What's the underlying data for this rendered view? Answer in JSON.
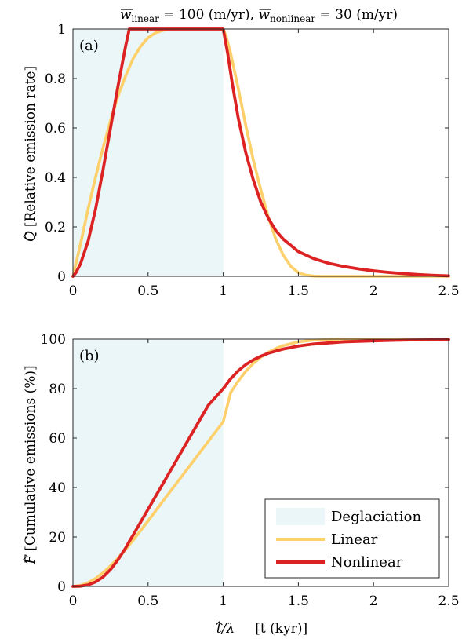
{
  "figure": {
    "title": "w̄linear = 100 (m/yr), w̄nonlinear = 30 (m/yr)",
    "title_parts": {
      "w": "w",
      "linear_sub": "linear",
      "linear_eq": " = 100 (m/yr), ",
      "nonlinear_sub": "nonlinear",
      "nonlinear_eq": " = 30 (m/yr)"
    },
    "colors": {
      "deglaciation": "#eaf6f8",
      "linear": "#fdd06b",
      "nonlinear": "#dc2222"
    }
  },
  "chart_data": [
    {
      "type": "line",
      "panel_label": "(a)",
      "xlabel": "",
      "ylabel_symbol": "Q",
      "ylabel": "[Relative emission rate]",
      "xlim": [
        0,
        2.5
      ],
      "ylim": [
        0,
        1
      ],
      "xticks": [
        0,
        0.5,
        1,
        1.5,
        2,
        2.5
      ],
      "xtick_labels": [
        "0",
        "0.5",
        "1",
        "1.5",
        "2",
        "2.5"
      ],
      "yticks": [
        0,
        0.2,
        0.4,
        0.6,
        0.8,
        1
      ],
      "ytick_labels": [
        "0",
        "0.2",
        "0.4",
        "0.6",
        "0.8",
        "1"
      ],
      "shaded_region": {
        "name": "Deglaciation",
        "x": [
          0,
          1
        ]
      },
      "series": [
        {
          "name": "Linear",
          "x": [
            0,
            0.05,
            0.1,
            0.15,
            0.2,
            0.25,
            0.3,
            0.35,
            0.4,
            0.45,
            0.5,
            0.55,
            0.6,
            0.65,
            0.7,
            1.0,
            1.02,
            1.05,
            1.1,
            1.15,
            1.2,
            1.25,
            1.3,
            1.35,
            1.4,
            1.45,
            1.5,
            1.55,
            1.6,
            1.65,
            2.0,
            2.5
          ],
          "y": [
            0,
            0.13,
            0.27,
            0.4,
            0.52,
            0.63,
            0.73,
            0.81,
            0.88,
            0.93,
            0.965,
            0.985,
            0.995,
            1.0,
            1.0,
            1.0,
            0.97,
            0.9,
            0.76,
            0.61,
            0.47,
            0.35,
            0.24,
            0.15,
            0.085,
            0.04,
            0.015,
            0.005,
            0.001,
            0,
            0,
            0
          ]
        },
        {
          "name": "Nonlinear",
          "x": [
            0,
            0.02,
            0.05,
            0.1,
            0.15,
            0.2,
            0.25,
            0.3,
            0.35,
            0.375,
            1.0,
            1.03,
            1.06,
            1.1,
            1.15,
            1.2,
            1.25,
            1.3,
            1.35,
            1.4,
            1.5,
            1.6,
            1.7,
            1.8,
            1.9,
            2.0,
            2.1,
            2.2,
            2.3,
            2.4,
            2.5
          ],
          "y": [
            0,
            0.015,
            0.05,
            0.14,
            0.27,
            0.43,
            0.6,
            0.77,
            0.93,
            1.0,
            1.0,
            0.9,
            0.78,
            0.64,
            0.5,
            0.39,
            0.3,
            0.235,
            0.185,
            0.15,
            0.1,
            0.072,
            0.053,
            0.04,
            0.03,
            0.022,
            0.016,
            0.011,
            0.007,
            0.004,
            0.002
          ]
        }
      ]
    },
    {
      "type": "line",
      "panel_label": "(b)",
      "xlabel": "t̂/λ    [t (kyr)]",
      "xlabel_parts": {
        "t": "t",
        "frac": "/λ",
        "bracket": "[t (kyr)]"
      },
      "ylabel_symbol": "F",
      "ylabel": "[Cumulative emissions (%)]",
      "xlim": [
        0,
        2.5
      ],
      "ylim": [
        0,
        100
      ],
      "xticks": [
        0,
        0.5,
        1,
        1.5,
        2,
        2.5
      ],
      "xtick_labels": [
        "0",
        "0.5",
        "1",
        "1.5",
        "2",
        "2.5"
      ],
      "yticks": [
        0,
        20,
        40,
        60,
        80,
        100
      ],
      "ytick_labels": [
        "0",
        "20",
        "40",
        "60",
        "80",
        "100"
      ],
      "shaded_region": {
        "name": "Deglaciation",
        "x": [
          0,
          1
        ]
      },
      "legend": {
        "position": "bottom-right",
        "entries": [
          "Deglaciation",
          "Linear",
          "Nonlinear"
        ]
      },
      "series": [
        {
          "name": "Linear",
          "x": [
            0,
            0.05,
            0.1,
            0.15,
            0.2,
            0.25,
            0.3,
            0.35,
            0.4,
            0.5,
            0.6,
            0.7,
            0.8,
            0.9,
            1.0,
            1.05,
            1.1,
            1.15,
            1.2,
            1.25,
            1.3,
            1.35,
            1.4,
            1.5,
            1.6,
            1.8,
            2.0,
            2.5
          ],
          "y": [
            0,
            0.4,
            1.5,
            3.2,
            5.5,
            8.3,
            11.4,
            14.9,
            18.6,
            26.5,
            34.6,
            42.6,
            50.6,
            58.6,
            66.6,
            78.5,
            83.0,
            87.0,
            90.2,
            92.7,
            94.7,
            96.2,
            97.4,
            98.9,
            99.6,
            100,
            100,
            100
          ]
        },
        {
          "name": "Nonlinear",
          "x": [
            0,
            0.05,
            0.1,
            0.15,
            0.2,
            0.25,
            0.3,
            0.35,
            0.375,
            0.4,
            0.5,
            0.6,
            0.7,
            0.8,
            0.9,
            1.0,
            1.05,
            1.1,
            1.15,
            1.2,
            1.25,
            1.3,
            1.4,
            1.5,
            1.6,
            1.8,
            2.0,
            2.2,
            2.5
          ],
          "y": [
            0,
            0.1,
            0.6,
            1.8,
            3.8,
            6.8,
            10.8,
            15.5,
            18.2,
            20.7,
            31.2,
            41.7,
            52.2,
            62.7,
            73.2,
            80.0,
            84.0,
            87.2,
            89.7,
            91.6,
            93.1,
            94.3,
            96.0,
            97.2,
            98.0,
            98.9,
            99.3,
            99.6,
            99.8
          ]
        }
      ]
    }
  ]
}
